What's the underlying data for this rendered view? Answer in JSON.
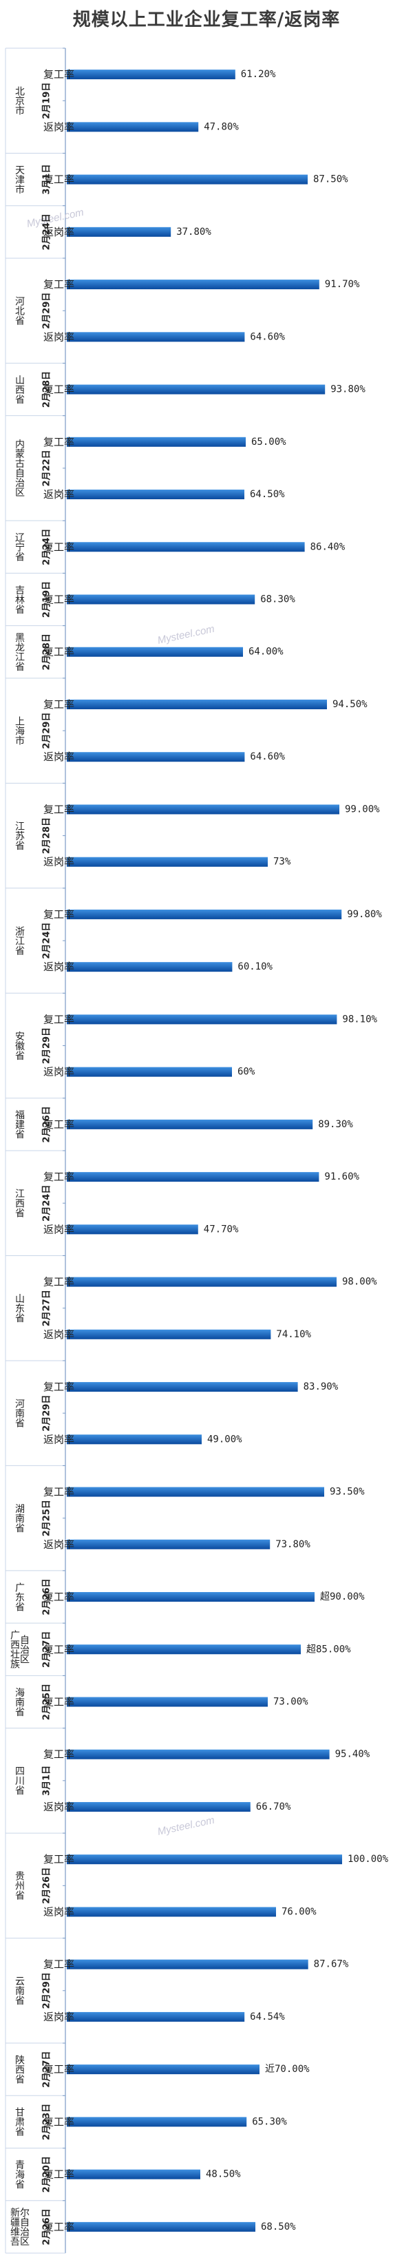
{
  "colors": {
    "bar_top": "#3d8fe0",
    "bar_bottom": "#0a4a9e",
    "axis": "#7a9ac6",
    "grid": "#c9d6e8"
  },
  "chart_data": {
    "type": "bar",
    "orientation": "horizontal",
    "title": "规模以上工业企业复工率/返岗率",
    "xlim": [
      0,
      100
    ],
    "groups": [
      {
        "region": "北京市",
        "date": "2月19日",
        "items": [
          {
            "metric": "复工率",
            "value": 61.2,
            "label": "61.20%"
          },
          {
            "metric": "返岗率",
            "value": 47.8,
            "label": "47.80%"
          }
        ]
      },
      {
        "region": "天津市",
        "date": "3月1日",
        "items": [
          {
            "metric": "复工率",
            "value": 87.5,
            "label": "87.50%"
          }
        ]
      },
      {
        "region": "",
        "date": "2月24日",
        "items": [
          {
            "metric": "返岗率",
            "value": 37.8,
            "label": "37.80%"
          }
        ]
      },
      {
        "region": "河北省",
        "date": "2月29日",
        "items": [
          {
            "metric": "复工率",
            "value": 91.7,
            "label": "91.70%"
          },
          {
            "metric": "返岗率",
            "value": 64.6,
            "label": "64.60%"
          }
        ]
      },
      {
        "region": "山西省",
        "date": "2月28日",
        "items": [
          {
            "metric": "复工率",
            "value": 93.8,
            "label": "93.80%"
          }
        ]
      },
      {
        "region": "内蒙古自治区",
        "date": "2月22日",
        "items": [
          {
            "metric": "复工率",
            "value": 65.0,
            "label": "65.00%"
          },
          {
            "metric": "返岗率",
            "value": 64.5,
            "label": "64.50%"
          }
        ]
      },
      {
        "region": "辽宁省",
        "date": "2月24日",
        "items": [
          {
            "metric": "复工率",
            "value": 86.4,
            "label": "86.40%"
          }
        ]
      },
      {
        "region": "吉林省",
        "date": "2月19日",
        "items": [
          {
            "metric": "复工率",
            "value": 68.3,
            "label": "68.30%"
          }
        ]
      },
      {
        "region": "黑龙江省",
        "date": "2月28日",
        "items": [
          {
            "metric": "复工率",
            "value": 64.0,
            "label": "64.00%"
          }
        ]
      },
      {
        "region": "上海市",
        "date": "2月29日",
        "items": [
          {
            "metric": "复工率",
            "value": 94.5,
            "label": "94.50%"
          },
          {
            "metric": "返岗率",
            "value": 64.6,
            "label": "64.60%"
          }
        ]
      },
      {
        "region": "江苏省",
        "date": "2月28日",
        "items": [
          {
            "metric": "复工率",
            "value": 99.0,
            "label": "99.00%"
          },
          {
            "metric": "返岗率",
            "value": 73,
            "label": "73%"
          }
        ]
      },
      {
        "region": "浙江省",
        "date": "2月24日",
        "items": [
          {
            "metric": "复工率",
            "value": 99.8,
            "label": "99.80%"
          },
          {
            "metric": "返岗率",
            "value": 60.1,
            "label": "60.10%"
          }
        ]
      },
      {
        "region": "安徽省",
        "date": "2月29日",
        "items": [
          {
            "metric": "复工率",
            "value": 98.1,
            "label": "98.10%"
          },
          {
            "metric": "返岗率",
            "value": 60,
            "label": "60%"
          }
        ]
      },
      {
        "region": "福建省",
        "date": "2月26日",
        "items": [
          {
            "metric": "复工率",
            "value": 89.3,
            "label": "89.30%"
          }
        ]
      },
      {
        "region": "江西省",
        "date": "2月24日",
        "items": [
          {
            "metric": "复工率",
            "value": 91.6,
            "label": "91.60%"
          },
          {
            "metric": "返岗率",
            "value": 47.7,
            "label": "47.70%"
          }
        ]
      },
      {
        "region": "山东省",
        "date": "2月27日",
        "items": [
          {
            "metric": "复工率",
            "value": 98.0,
            "label": "98.00%"
          },
          {
            "metric": "返岗率",
            "value": 74.1,
            "label": "74.10%"
          }
        ]
      },
      {
        "region": "河南省",
        "date": "2月29日",
        "items": [
          {
            "metric": "复工率",
            "value": 83.9,
            "label": "83.90%"
          },
          {
            "metric": "返岗率",
            "value": 49.0,
            "label": "49.00%"
          }
        ]
      },
      {
        "region": "湖南省",
        "date": "2月25日",
        "items": [
          {
            "metric": "复工率",
            "value": 93.5,
            "label": "93.50%"
          },
          {
            "metric": "返岗率",
            "value": 73.8,
            "label": "73.80%"
          }
        ]
      },
      {
        "region": "广东省",
        "date": "2月26日",
        "items": [
          {
            "metric": "复工率",
            "value": 90.0,
            "label": "超90.00%"
          }
        ]
      },
      {
        "region": "广西壮族自治区",
        "date": "2月27日",
        "items": [
          {
            "metric": "复工率",
            "value": 85.0,
            "label": "超85.00%"
          }
        ]
      },
      {
        "region": "海南省",
        "date": "2月25日",
        "items": [
          {
            "metric": "复工率",
            "value": 73.0,
            "label": "73.00%"
          }
        ]
      },
      {
        "region": "四川省",
        "date": "3月1日",
        "items": [
          {
            "metric": "复工率",
            "value": 95.4,
            "label": "95.40%"
          },
          {
            "metric": "返岗率",
            "value": 66.7,
            "label": "66.70%"
          }
        ]
      },
      {
        "region": "贵州省",
        "date": "2月26日",
        "items": [
          {
            "metric": "复工率",
            "value": 100.0,
            "label": "100.00%"
          },
          {
            "metric": "返岗率",
            "value": 76.0,
            "label": "76.00%"
          }
        ]
      },
      {
        "region": "云南省",
        "date": "2月29日",
        "items": [
          {
            "metric": "复工率",
            "value": 87.67,
            "label": "87.67%"
          },
          {
            "metric": "返岗率",
            "value": 64.54,
            "label": "64.54%"
          }
        ]
      },
      {
        "region": "陕西省",
        "date": "2月27日",
        "items": [
          {
            "metric": "复工率",
            "value": 70.0,
            "label": "近70.00%"
          }
        ]
      },
      {
        "region": "甘肃省",
        "date": "2月23日",
        "items": [
          {
            "metric": "复工率",
            "value": 65.3,
            "label": "65.30%"
          }
        ]
      },
      {
        "region": "青海省",
        "date": "2月20日",
        "items": [
          {
            "metric": "复工率",
            "value": 48.5,
            "label": "48.50%"
          }
        ]
      },
      {
        "region": "新疆维吾尔自治区",
        "date": "2月26日",
        "items": [
          {
            "metric": "复工率",
            "value": 68.5,
            "label": "68.50%"
          }
        ]
      }
    ]
  },
  "watermarks": [
    {
      "text": "Mysteel.com"
    },
    {
      "text": "Mysteel.com"
    },
    {
      "text": "Mysteel.com"
    }
  ]
}
